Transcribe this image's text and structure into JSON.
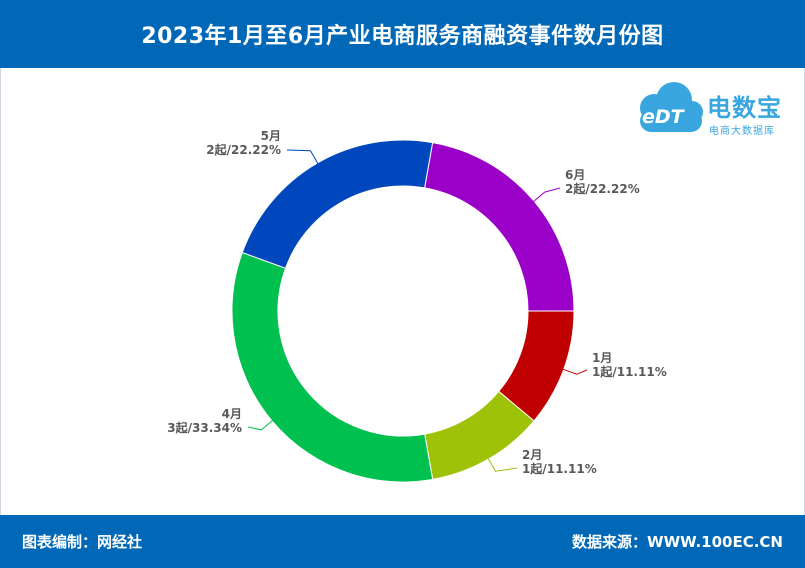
{
  "header": {
    "title": "2023年1月至6月产业电商服务商融资事件数月份图"
  },
  "footer": {
    "left": "图表编制：网经社",
    "right": "数据来源：WWW.100EC.CN"
  },
  "logo": {
    "brand": "电数宝",
    "tagline": "电商大数据库",
    "mark": "eDT",
    "color": "#3aa6e0"
  },
  "chart_data": {
    "type": "pie",
    "donut": true,
    "slices": [
      {
        "label": "1月",
        "value": 1,
        "percent": "11.11%",
        "detail": "1起/11.11%",
        "color": "#c00000"
      },
      {
        "label": "2月",
        "value": 1,
        "percent": "11.11%",
        "detail": "1起/11.11%",
        "color": "#9dc208"
      },
      {
        "label": "4月",
        "value": 3,
        "percent": "33.34%",
        "detail": "3起/33.34%",
        "color": "#00c04f"
      },
      {
        "label": "5月",
        "value": 2,
        "percent": "22.22%",
        "detail": "2起/22.22%",
        "color": "#0047bd"
      },
      {
        "label": "6月",
        "value": 2,
        "percent": "22.22%",
        "detail": "2起/22.22%",
        "color": "#9b00c8"
      }
    ]
  },
  "colors": {
    "header_bg": "#0068b7",
    "label_text": "#595959"
  }
}
